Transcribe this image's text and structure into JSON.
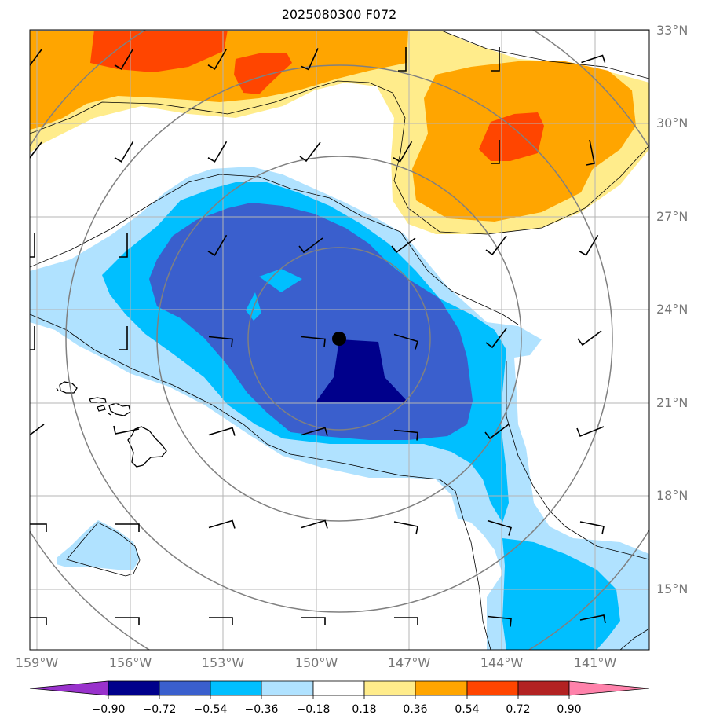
{
  "title": "2025080300 F072",
  "colors": {
    "shade": [
      "#9932CC",
      "#00008B",
      "#3A5FCD",
      "#00BFFF",
      "#B0E2FF",
      "#FFFFFF",
      "#FFEC8B",
      "#FFA500",
      "#FF4500",
      "#B22222",
      "#FF82AB"
    ],
    "coast": "#000000",
    "range_ring": "#808080",
    "gridline": "#b4b4b4",
    "center_marker": "#000000"
  },
  "lat_labels": [
    "33°N",
    "30°N",
    "27°N",
    "24°N",
    "21°N",
    "18°N",
    "15°N"
  ],
  "lon_labels": [
    "159°W",
    "156°W",
    "153°W",
    "150°W",
    "147°W",
    "144°W",
    "141°W"
  ],
  "colorbar": {
    "levels": [
      "−0.90",
      "−0.72",
      "−0.54",
      "−0.36",
      "−0.18",
      "0.18",
      "0.36",
      "0.54",
      "0.72",
      "0.90"
    ],
    "extend": "both"
  },
  "center_marker": {
    "lat": 23.0,
    "lon": -149.3
  },
  "grid": true
}
